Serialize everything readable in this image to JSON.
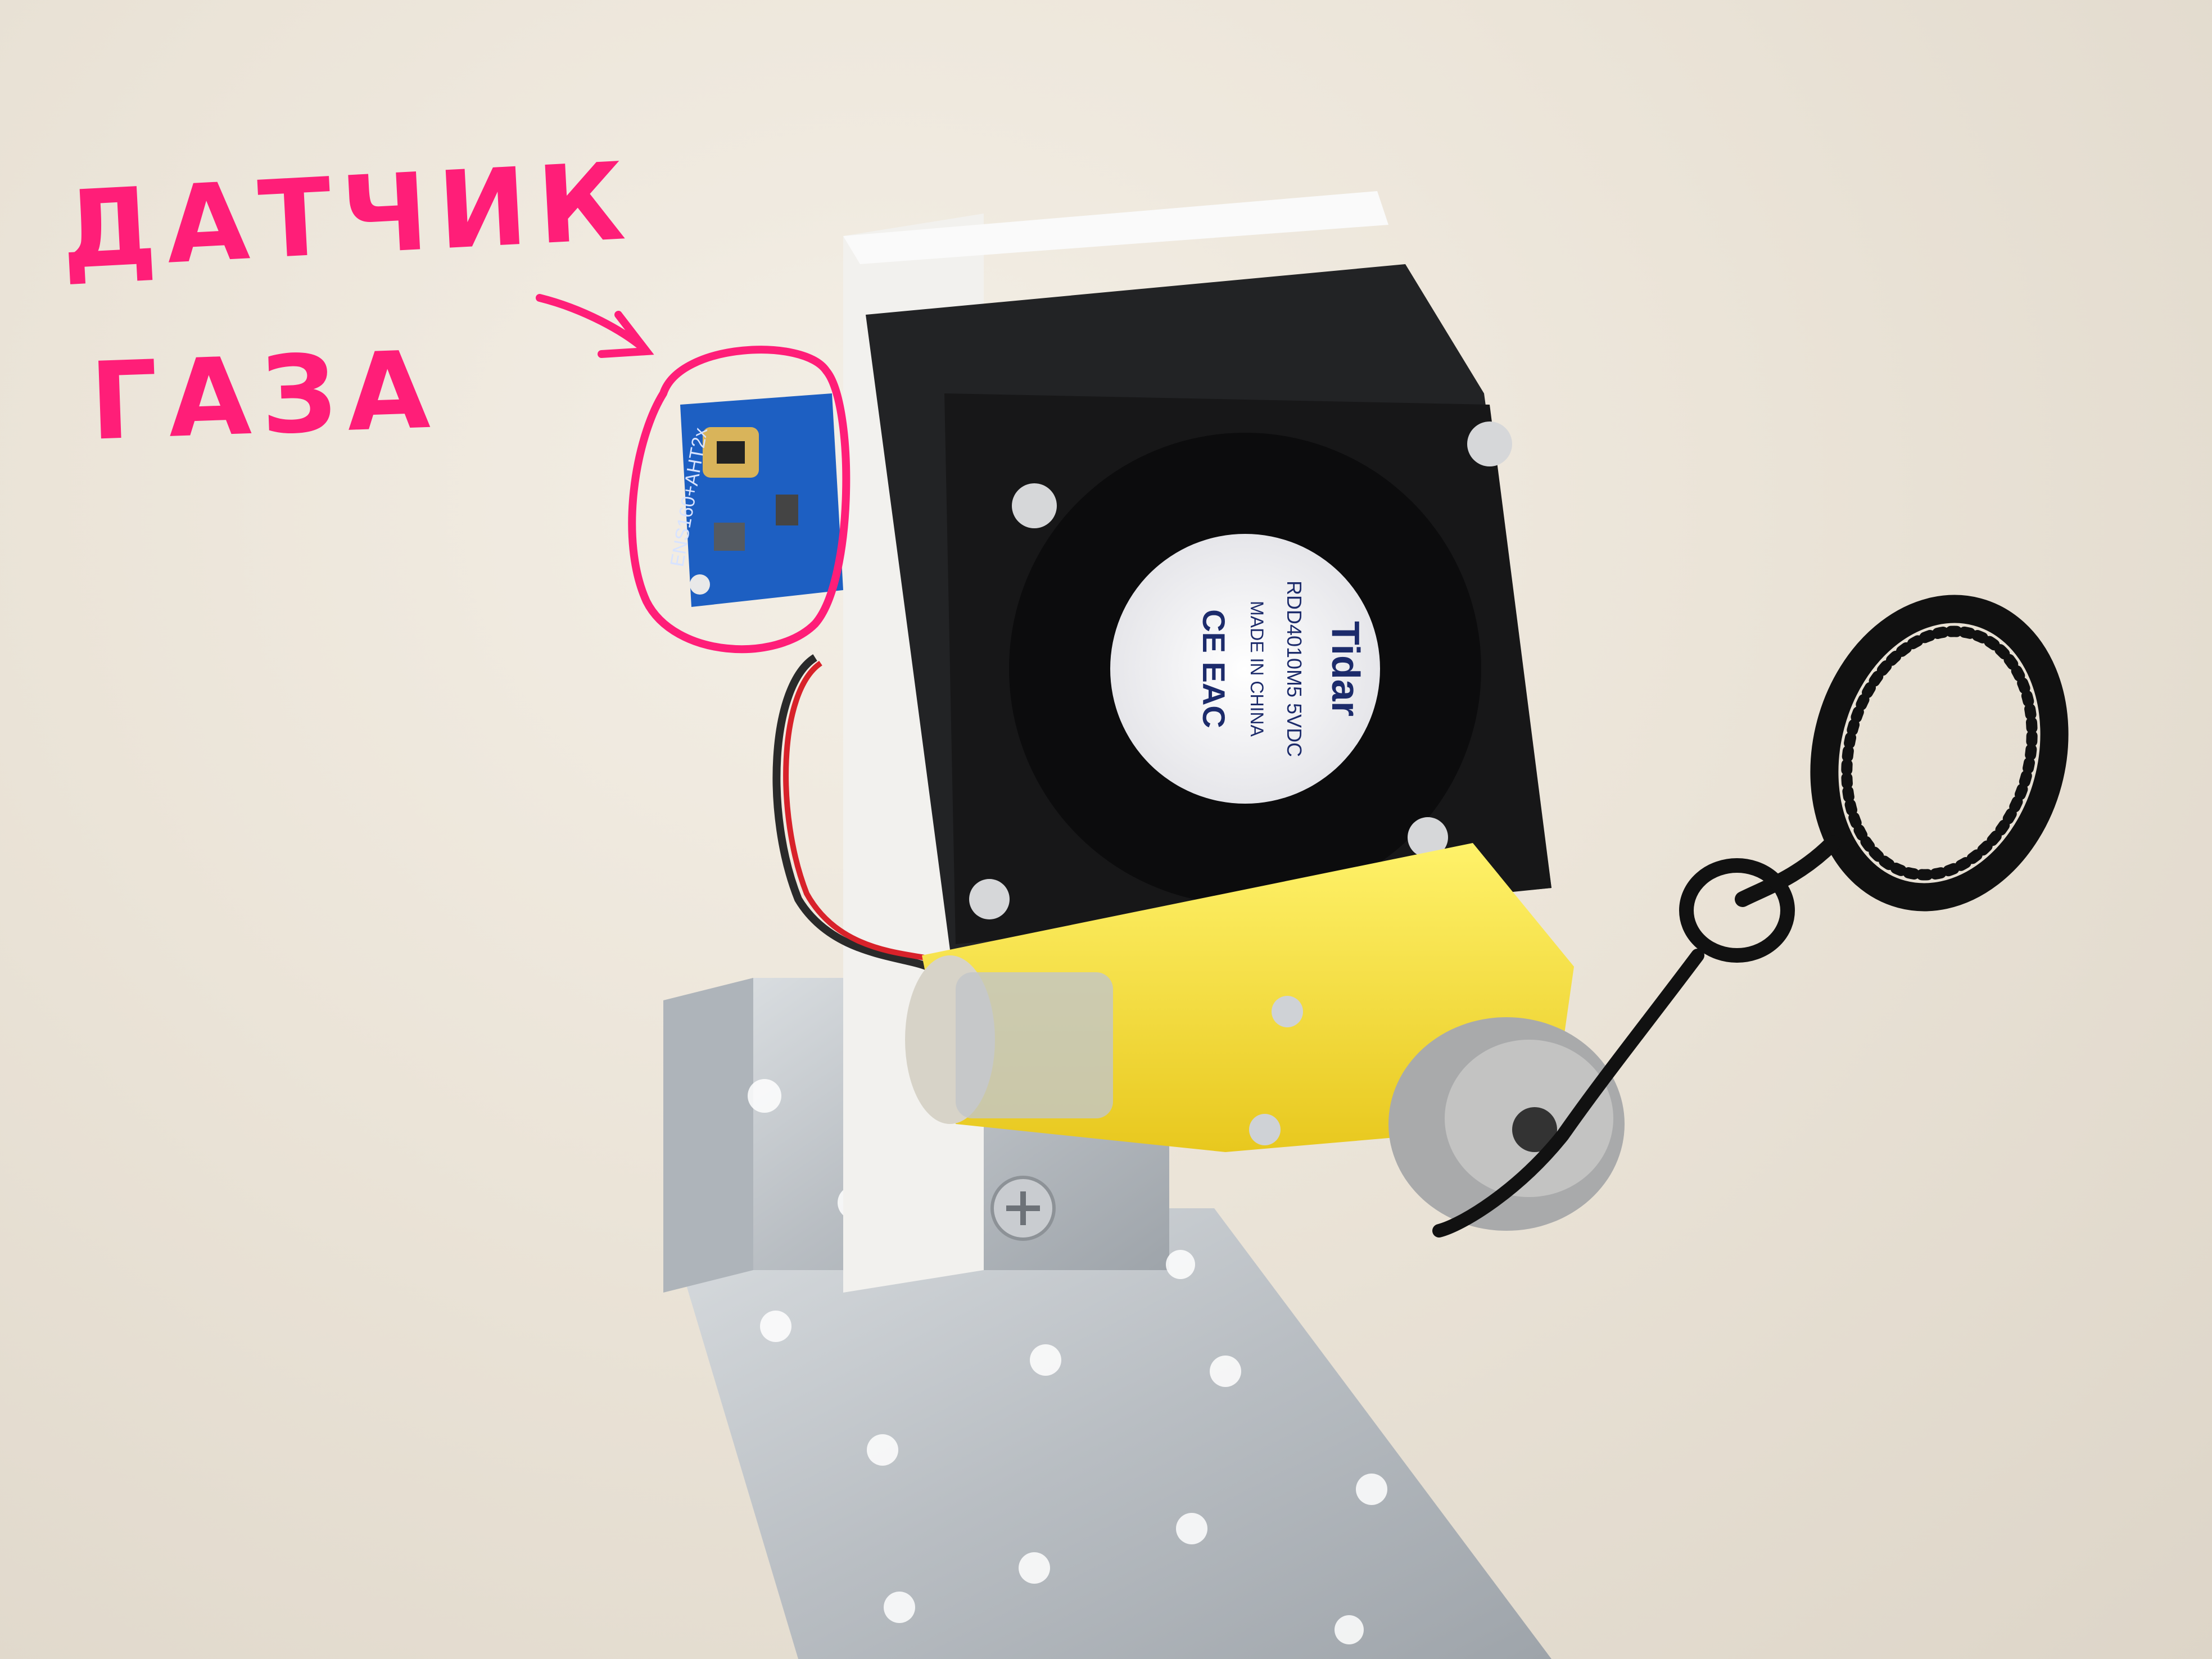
{
  "annotation": {
    "label_line1": "ДАТЧИК",
    "label_line2": "ГАЗА",
    "color": "#ff1e78"
  },
  "fan_label": {
    "brand": "Tidar",
    "model": "RDD4010M5 5VDC",
    "origin": "MADE IN CHINA",
    "marks": "CE EAC"
  },
  "sensor_board": {
    "silkscreen": "ENS160+AHT2x"
  }
}
